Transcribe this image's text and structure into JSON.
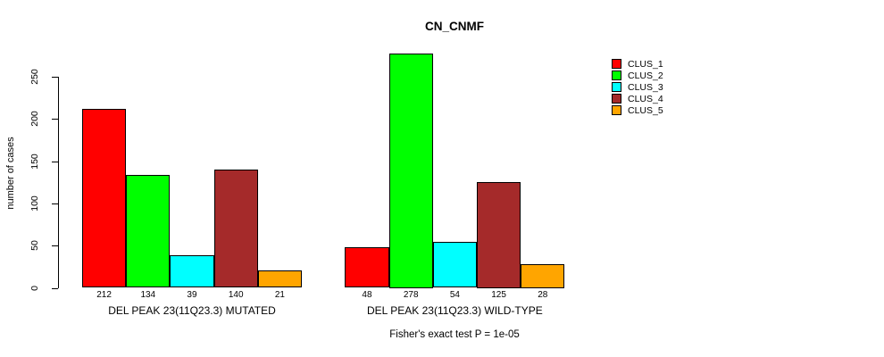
{
  "chart_data": {
    "type": "bar",
    "title": "CN_CNMF",
    "ylabel": "number of cases",
    "ylim": [
      0,
      250
    ],
    "yticks": [
      0,
      50,
      100,
      150,
      200,
      250
    ],
    "grid": false,
    "legend_position": "right-outside-top",
    "categories": [
      "DEL PEAK 23(11Q23.3) MUTATED",
      "DEL PEAK 23(11Q23.3) WILD-TYPE"
    ],
    "series": [
      {
        "name": "CLUS_1",
        "color": "#FF0000",
        "values": [
          212,
          48
        ]
      },
      {
        "name": "CLUS_2",
        "color": "#00FF00",
        "values": [
          134,
          278
        ]
      },
      {
        "name": "CLUS_3",
        "color": "#00FFFF",
        "values": [
          39,
          54
        ]
      },
      {
        "name": "CLUS_4",
        "color": "#A52A2A",
        "values": [
          140,
          125
        ]
      },
      {
        "name": "CLUS_5",
        "color": "#FFA500",
        "values": [
          21,
          28
        ]
      }
    ],
    "annotation": "Fisher's exact test P = 1e-05"
  }
}
